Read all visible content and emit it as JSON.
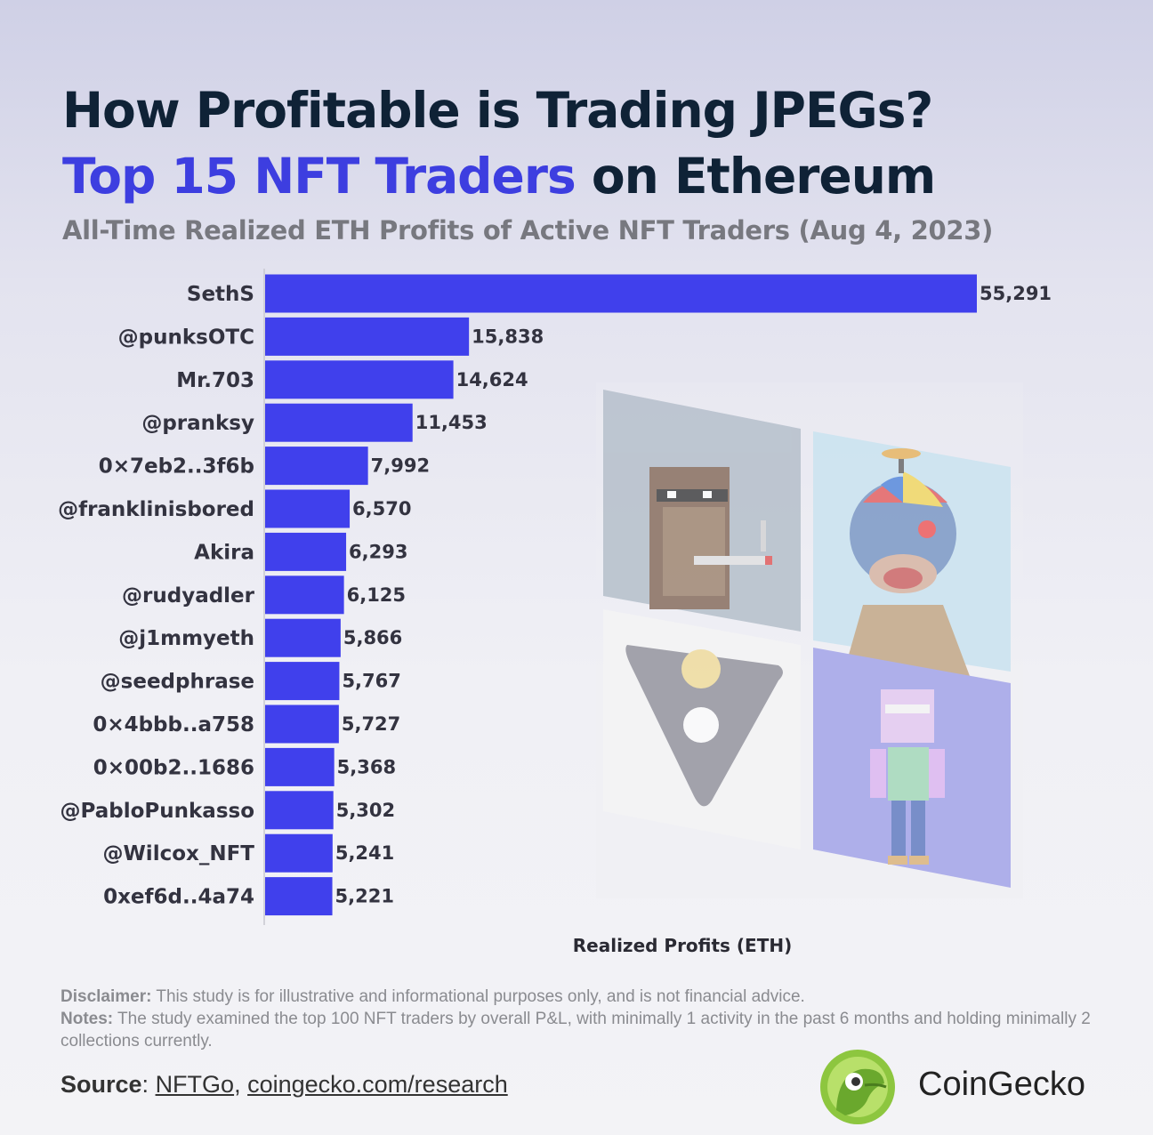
{
  "header": {
    "title_line1": "How Profitable is Trading JPEGs?",
    "title_line2_accent": "Top 15 NFT Traders",
    "title_line2_rest": " on Ethereum",
    "subtitle": "All-Time Realized ETH Profits of Active NFT Traders (Aug 4, 2023)"
  },
  "chart_data": {
    "type": "bar",
    "orientation": "horizontal",
    "title": "All-Time Realized ETH Profits of Active NFT Traders (Aug 4, 2023)",
    "xlabel": "Realized Profits (ETH)",
    "ylabel": "",
    "categories": [
      "SethS",
      "@punksOTC",
      "Mr.703",
      "@pranksy",
      "0×7eb2..3f6b",
      "@franklinisbored",
      "Akira",
      "@rudyadler",
      "@j1mmyeth",
      "@seedphrase",
      "0×4bbb..a758",
      "0×00b2..1686",
      "@PabloPunkasso",
      "@Wilcox_NFT",
      "0xef6d..4a74"
    ],
    "values": [
      55291,
      15838,
      14624,
      11453,
      7992,
      6570,
      6293,
      6125,
      5866,
      5767,
      5727,
      5368,
      5302,
      5241,
      5221
    ],
    "value_labels": [
      "55,291",
      "15,838",
      "14,624",
      "11,453",
      "7,992",
      "6,570",
      "6,293",
      "6,125",
      "5,866",
      "5,767",
      "5,727",
      "5,368",
      "5,302",
      "5,241",
      "5,221"
    ],
    "bar_color": "#4040ec",
    "grid": false,
    "legend": "none"
  },
  "footer": {
    "disclaimer_label": "Disclaimer:",
    "disclaimer_text": " This study is for illustrative and informational purposes only, and is not financial advice.",
    "notes_label": "Notes:",
    "notes_text": " The study examined the top 100 NFT traders by overall P&L, with minimally 1 activity in the past 6 months and holding minimally 2 collections currently.",
    "source_label": "Source",
    "source_sep": ": ",
    "source_link1": "NFTGo",
    "source_comma": ", ",
    "source_link2": "coingecko.com/research"
  },
  "brand": {
    "name": "CoinGecko"
  },
  "colors": {
    "title_dark": "#0f2236",
    "accent": "#3d3ee0",
    "subtitle": "#77787f",
    "bar": "#4040ec"
  }
}
